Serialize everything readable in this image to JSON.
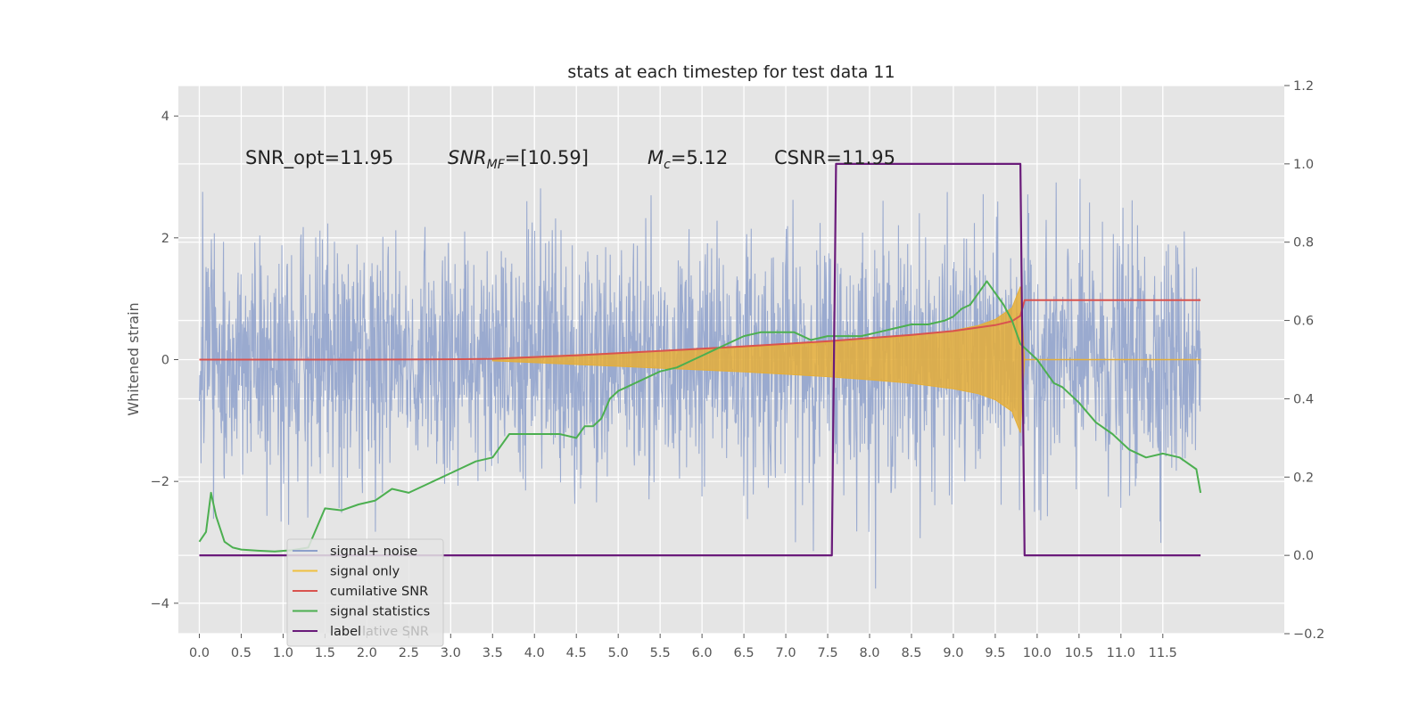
{
  "chart_data": {
    "type": "line",
    "title": "stats at each timestep for test data 11",
    "xlabel": "",
    "ylabel": "Whitened strain",
    "y2label": "",
    "xlim": [
      -0.25,
      12.95
    ],
    "ylim": [
      -4.5,
      4.5
    ],
    "y2lim": [
      -0.2,
      1.2
    ],
    "grid": true,
    "legend_position": "lower-left",
    "x_ticks": [
      "0.0",
      "0.5",
      "1.0",
      "1.5",
      "2.0",
      "2.5",
      "3.0",
      "3.5",
      "4.0",
      "4.5",
      "5.0",
      "5.5",
      "6.0",
      "6.5",
      "7.0",
      "7.5",
      "8.0",
      "8.5",
      "9.0",
      "9.5",
      "10.0",
      "10.5",
      "11.0",
      "11.5"
    ],
    "y_ticks": [
      "−4",
      "−2",
      "0",
      "2",
      "4"
    ],
    "y2_ticks": [
      "−0.2",
      "0.0",
      "0.2",
      "0.4",
      "0.6",
      "0.8",
      "1.0",
      "1.2"
    ],
    "annotations": {
      "snr_opt": "SNR_opt=11.95",
      "snr_mf_base": "SNR",
      "snr_mf_sub": "MF",
      "snr_mf_val": "=[10.59]",
      "mc_base": "M",
      "mc_sub": "c",
      "mc_val": "=5.12",
      "csnr": "CSNR=11.95"
    },
    "series": [
      {
        "name": "signal+ noise",
        "color": "#8da0cb",
        "axis": "left",
        "style": "dense-noise",
        "x_start": 0.0,
        "x_end": 11.95,
        "amplitude_std": 1.0
      },
      {
        "name": "signal only",
        "color": "#e5ae38",
        "axis": "left",
        "style": "chirp-envelope",
        "x": [
          3.5,
          4.0,
          4.5,
          5.0,
          5.5,
          6.0,
          6.5,
          7.0,
          7.5,
          8.0,
          8.5,
          9.0,
          9.3,
          9.5,
          9.7,
          9.8,
          9.85
        ],
        "envelope": [
          0.02,
          0.05,
          0.08,
          0.11,
          0.14,
          0.17,
          0.2,
          0.24,
          0.28,
          0.33,
          0.39,
          0.48,
          0.56,
          0.66,
          0.85,
          1.2,
          0.0
        ]
      },
      {
        "name": "cumilative SNR",
        "color": "#d9534f",
        "axis": "right",
        "x": [
          0.0,
          1.0,
          2.0,
          3.0,
          3.5,
          4.5,
          5.5,
          6.5,
          7.5,
          8.0,
          8.5,
          9.0,
          9.5,
          9.7,
          9.8,
          9.85,
          10.5,
          11.0,
          11.95
        ],
        "values": [
          0.5,
          0.5,
          0.5,
          0.501,
          0.502,
          0.511,
          0.522,
          0.534,
          0.547,
          0.555,
          0.563,
          0.573,
          0.588,
          0.598,
          0.612,
          0.652,
          0.652,
          0.652,
          0.652
        ]
      },
      {
        "name": "signal statistics",
        "color": "#4caf50",
        "axis": "right",
        "x": [
          0.0,
          0.08,
          0.14,
          0.2,
          0.3,
          0.4,
          0.5,
          0.7,
          0.9,
          1.1,
          1.3,
          1.5,
          1.7,
          1.9,
          2.1,
          2.3,
          2.5,
          2.7,
          2.9,
          3.1,
          3.3,
          3.5,
          3.7,
          3.9,
          4.1,
          4.3,
          4.5,
          4.6,
          4.7,
          4.8,
          4.9,
          5.0,
          5.1,
          5.3,
          5.5,
          5.7,
          5.9,
          6.0,
          6.1,
          6.3,
          6.5,
          6.7,
          6.9,
          7.1,
          7.3,
          7.5,
          7.7,
          7.9,
          8.1,
          8.3,
          8.5,
          8.7,
          8.9,
          9.0,
          9.1,
          9.2,
          9.3,
          9.4,
          9.5,
          9.6,
          9.7,
          9.8,
          9.9,
          10.0,
          10.1,
          10.2,
          10.3,
          10.5,
          10.7,
          10.9,
          11.0,
          11.1,
          11.3,
          11.5,
          11.7,
          11.9,
          11.95
        ],
        "values": [
          0.035,
          0.06,
          0.16,
          0.1,
          0.035,
          0.02,
          0.015,
          0.012,
          0.01,
          0.013,
          0.02,
          0.12,
          0.115,
          0.13,
          0.14,
          0.17,
          0.16,
          0.18,
          0.2,
          0.22,
          0.24,
          0.25,
          0.31,
          0.31,
          0.31,
          0.31,
          0.3,
          0.33,
          0.33,
          0.35,
          0.4,
          0.42,
          0.43,
          0.45,
          0.47,
          0.48,
          0.5,
          0.51,
          0.52,
          0.54,
          0.56,
          0.57,
          0.57,
          0.57,
          0.55,
          0.56,
          0.56,
          0.56,
          0.57,
          0.58,
          0.59,
          0.59,
          0.6,
          0.61,
          0.63,
          0.64,
          0.67,
          0.7,
          0.67,
          0.64,
          0.6,
          0.54,
          0.52,
          0.5,
          0.47,
          0.44,
          0.43,
          0.39,
          0.34,
          0.31,
          0.29,
          0.27,
          0.25,
          0.26,
          0.25,
          0.22,
          0.16
        ]
      },
      {
        "name": "label",
        "color": "#6a1b7a",
        "axis": "right",
        "x": [
          0.0,
          7.55,
          7.6,
          9.8,
          9.85,
          11.95
        ],
        "values": [
          0.0,
          0.0,
          1.0,
          1.0,
          0.0,
          0.0
        ]
      }
    ],
    "legend": [
      {
        "name": "signal+ noise",
        "color": "#8da0cb"
      },
      {
        "name": "signal only",
        "color": "#f0c040"
      },
      {
        "name": "cumilative SNR",
        "color": "#d9534f"
      },
      {
        "name": "signal statistics",
        "color": "#4caf50"
      },
      {
        "name": "label",
        "color": "#6a1b7a"
      }
    ],
    "legend_ghost_text": "lative SNR"
  }
}
